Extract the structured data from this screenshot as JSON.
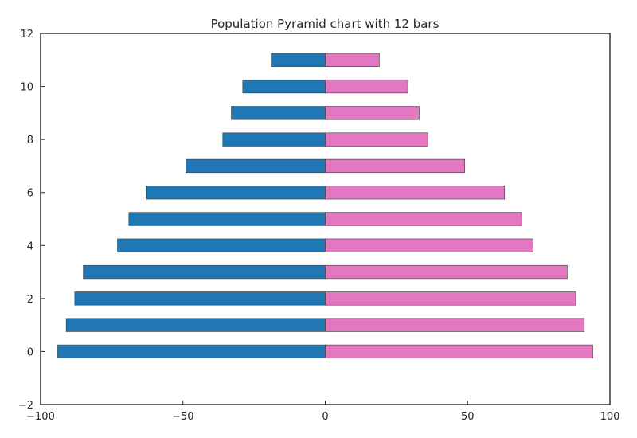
{
  "chart_data": {
    "type": "bar",
    "orientation": "horizontal",
    "title": "Population Pyramid chart with 12 bars",
    "xlabel": "",
    "ylabel": "",
    "xlim": [
      -100,
      100
    ],
    "ylim": [
      -2,
      12
    ],
    "xticks": [
      -100,
      -50,
      0,
      50,
      100
    ],
    "xtick_labels": [
      "−100",
      "−50",
      "0",
      "50",
      "100"
    ],
    "yticks": [
      -2,
      0,
      2,
      4,
      6,
      8,
      10,
      12
    ],
    "ytick_labels": [
      "−2",
      "0",
      "2",
      "4",
      "6",
      "8",
      "10",
      "12"
    ],
    "grid": false,
    "categories": [
      0,
      1,
      2,
      3,
      4,
      5,
      6,
      7,
      8,
      9,
      10,
      11
    ],
    "series": [
      {
        "color": "#1f77b4",
        "values": [
          -94,
          -91,
          -88,
          -85,
          -73,
          -69,
          -63,
          -49,
          -36,
          -33,
          -29,
          -19
        ]
      },
      {
        "color": "#e377c2",
        "values": [
          94,
          91,
          88,
          85,
          73,
          69,
          63,
          49,
          36,
          33,
          29,
          19
        ]
      }
    ]
  }
}
